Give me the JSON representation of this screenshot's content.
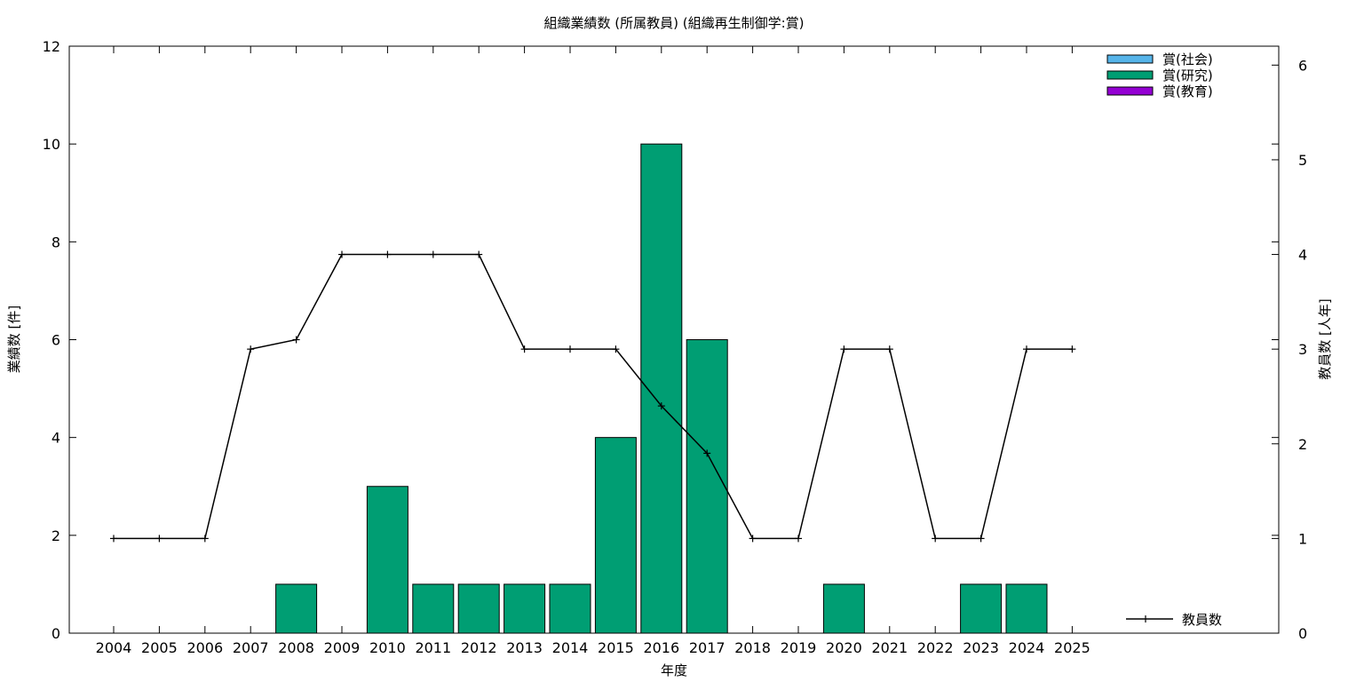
{
  "chart_data": {
    "type": "bar",
    "title": "組織業績数 (所属教員) (組織再生制御学:賞)",
    "xlabel": "年度",
    "ylabel": "業績数 [件]",
    "y2label": "教員数 [人年]",
    "ylim": [
      0,
      12
    ],
    "y2lim": [
      0,
      6.2
    ],
    "yticks": [
      0,
      2,
      4,
      6,
      8,
      10,
      12
    ],
    "y2ticks": [
      0,
      1,
      2,
      3,
      4,
      5,
      6
    ],
    "categories": [
      "2004",
      "2005",
      "2006",
      "2007",
      "2008",
      "2009",
      "2010",
      "2011",
      "2012",
      "2013",
      "2014",
      "2015",
      "2016",
      "2017",
      "2018",
      "2019",
      "2020",
      "2021",
      "2022",
      "2023",
      "2024",
      "2025"
    ],
    "series": [
      {
        "name": "賞(社会)",
        "type": "bar",
        "color": "#56b4e9",
        "values": [
          0,
          0,
          0,
          0,
          0,
          0,
          0,
          0,
          0,
          0,
          0,
          0,
          0,
          0,
          0,
          0,
          0,
          0,
          0,
          0,
          0,
          0
        ]
      },
      {
        "name": "賞(研究)",
        "type": "bar",
        "color": "#009e73",
        "values": [
          0,
          0,
          0,
          0,
          1,
          0,
          3,
          1,
          1,
          1,
          1,
          4,
          10,
          6,
          0,
          0,
          1,
          0,
          0,
          1,
          1,
          0
        ]
      },
      {
        "name": "賞(教育)",
        "type": "bar",
        "color": "#9400d3",
        "values": [
          0,
          0,
          0,
          0,
          0,
          0,
          0,
          0,
          0,
          0,
          0,
          0,
          0,
          0,
          0,
          0,
          0,
          0,
          0,
          0,
          0,
          0
        ]
      },
      {
        "name": "教員数",
        "type": "line",
        "axis": "y2",
        "color": "#000000",
        "values": [
          1,
          1,
          1,
          3,
          3.1,
          4,
          4,
          4,
          4,
          3,
          3,
          3,
          2.4,
          1.9,
          1,
          1,
          3,
          3,
          1,
          1,
          3,
          3
        ]
      }
    ],
    "legend_position": "top-right",
    "grid": false
  }
}
